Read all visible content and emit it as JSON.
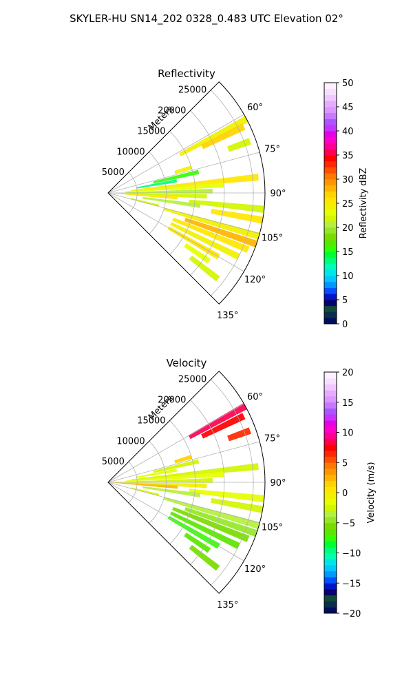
{
  "figure": {
    "suptitle": "SKYLER-HU  SN14_202  0328_0.483 UTC Elevation 02°"
  },
  "chart_data": [
    {
      "type": "heatmap",
      "projection": "polar-sector",
      "title": "Reflectivity",
      "range_label": "Meters",
      "azimuth_range_deg": [
        45,
        135
      ],
      "range_max_m": 27000,
      "range_ticks": [
        5000,
        10000,
        15000,
        20000,
        25000
      ],
      "range_tick_labels": [
        "5000",
        "10000",
        "15000",
        "20000",
        "25000"
      ],
      "azimuth_ticks": [
        60,
        75,
        90,
        105,
        120,
        135
      ],
      "azimuth_tick_labels": [
        "60°",
        "75°",
        "90°",
        "105°",
        "120°",
        "135°"
      ],
      "grid": true,
      "colorbar": {
        "label": "Reflectivity dBZ",
        "min": 0,
        "max": 50,
        "ticks": [
          0,
          5,
          10,
          15,
          20,
          25,
          30,
          35,
          40,
          45,
          50
        ],
        "tick_labels": [
          "0",
          "5",
          "10",
          "15",
          "20",
          "25",
          "30",
          "35",
          "40",
          "45",
          "50"
        ],
        "colors": [
          "#000e5a",
          "#0a2d4e",
          "#0f4a3a",
          "#08006e",
          "#0014c8",
          "#0050ff",
          "#0096ff",
          "#00c8ff",
          "#00e6e6",
          "#00ffb4",
          "#00ff78",
          "#00ff32",
          "#32ff00",
          "#5ae600",
          "#78dc00",
          "#96e628",
          "#b4f03c",
          "#d2f500",
          "#e6ff00",
          "#f0f000",
          "#ffe600",
          "#ffd200",
          "#ffb400",
          "#ff9600",
          "#ff7800",
          "#ff5000",
          "#ff2800",
          "#ff0000",
          "#ff0050",
          "#ff0096",
          "#ff00c8",
          "#e600e6",
          "#c832ff",
          "#aa55ff",
          "#c878ff",
          "#dc96ff",
          "#e6aaff",
          "#f0c8ff",
          "#f5e0ff",
          "#fff0ff"
        ]
      },
      "cells": [
        {
          "az": 62,
          "r0": 14000,
          "r1": 27000,
          "v": 24
        },
        {
          "az": 64,
          "r0": 18000,
          "r1": 26000,
          "v": 27
        },
        {
          "az": 70,
          "r0": 22000,
          "r1": 26000,
          "v": 22
        },
        {
          "az": 73,
          "r0": 12000,
          "r1": 15000,
          "v": 24
        },
        {
          "az": 77,
          "r0": 8000,
          "r1": 16000,
          "v": 15
        },
        {
          "az": 80,
          "r0": 5000,
          "r1": 12000,
          "v": 13
        },
        {
          "az": 84,
          "r0": 4000,
          "r1": 26000,
          "v": 25
        },
        {
          "az": 86,
          "r0": 3000,
          "r1": 20000,
          "v": 23
        },
        {
          "az": 89,
          "r0": 3000,
          "r1": 18000,
          "v": 21
        },
        {
          "az": 92,
          "r0": 1000,
          "r1": 17000,
          "v": 22
        },
        {
          "az": 94,
          "r0": 1000,
          "r1": 12000,
          "v": 26
        },
        {
          "az": 96,
          "r0": 14000,
          "r1": 27000,
          "v": 22
        },
        {
          "az": 98,
          "r0": 6000,
          "r1": 16000,
          "v": 20
        },
        {
          "az": 100,
          "r0": 18000,
          "r1": 27000,
          "v": 25
        },
        {
          "az": 104,
          "r0": 4000,
          "r1": 9000,
          "v": 22
        },
        {
          "az": 106,
          "r0": 10000,
          "r1": 27000,
          "v": 24
        },
        {
          "az": 109,
          "r0": 14000,
          "r1": 27000,
          "v": 28
        },
        {
          "az": 112,
          "r0": 12000,
          "r1": 26000,
          "v": 26
        },
        {
          "az": 116,
          "r0": 12000,
          "r1": 25000,
          "v": 24
        },
        {
          "az": 120,
          "r0": 12000,
          "r1": 22000,
          "v": 25
        },
        {
          "az": 124,
          "r0": 16000,
          "r1": 21000,
          "v": 23
        },
        {
          "az": 128,
          "r0": 18000,
          "r1": 24000,
          "v": 22
        }
      ]
    },
    {
      "type": "heatmap",
      "projection": "polar-sector",
      "title": "Velocity",
      "range_label": "Meters",
      "azimuth_range_deg": [
        45,
        135
      ],
      "range_max_m": 27000,
      "range_ticks": [
        5000,
        10000,
        15000,
        20000,
        25000
      ],
      "range_tick_labels": [
        "5000",
        "10000",
        "15000",
        "20000",
        "25000"
      ],
      "azimuth_ticks": [
        60,
        75,
        90,
        105,
        120,
        135
      ],
      "azimuth_tick_labels": [
        "60°",
        "75°",
        "90°",
        "105°",
        "120°",
        "135°"
      ],
      "grid": true,
      "colorbar": {
        "label": "Velocity (m/s)",
        "min": -20,
        "max": 20,
        "ticks": [
          -20,
          -15,
          -10,
          -5,
          0,
          5,
          10,
          15,
          20
        ],
        "tick_labels": [
          "−20",
          "−15",
          "−10",
          "−5",
          "0",
          "5",
          "10",
          "15",
          "20"
        ],
        "colors": [
          "#000e5a",
          "#0a2d4e",
          "#0f4a3a",
          "#08006e",
          "#0014c8",
          "#0050ff",
          "#0096ff",
          "#00c8ff",
          "#00e6e6",
          "#00ffb4",
          "#00ff78",
          "#00ff32",
          "#32ff00",
          "#5ae600",
          "#78dc00",
          "#96e628",
          "#b4f03c",
          "#d2f500",
          "#e6ff00",
          "#f0f000",
          "#ffe600",
          "#ffd200",
          "#ffb400",
          "#ff9600",
          "#ff7800",
          "#ff5000",
          "#ff2800",
          "#ff0000",
          "#ff0050",
          "#ff0096",
          "#ff00c8",
          "#e600e6",
          "#c832ff",
          "#aa55ff",
          "#c878ff",
          "#dc96ff",
          "#e6aaff",
          "#f0c8ff",
          "#f5e0ff",
          "#fff0ff"
        ]
      },
      "cells": [
        {
          "az": 61,
          "r0": 16000,
          "r1": 27000,
          "v": 8
        },
        {
          "az": 64,
          "r0": 18000,
          "r1": 26000,
          "v": 7
        },
        {
          "az": 70,
          "r0": 22000,
          "r1": 26000,
          "v": 6
        },
        {
          "az": 73,
          "r0": 12000,
          "r1": 15000,
          "v": 1
        },
        {
          "az": 77,
          "r0": 8000,
          "r1": 16000,
          "v": -3
        },
        {
          "az": 80,
          "r0": 5000,
          "r1": 12000,
          "v": -2
        },
        {
          "az": 84,
          "r0": 4000,
          "r1": 26000,
          "v": -3
        },
        {
          "az": 86,
          "r0": 3000,
          "r1": 20000,
          "v": -2
        },
        {
          "az": 89,
          "r0": 3000,
          "r1": 18000,
          "v": -3
        },
        {
          "az": 92,
          "r0": 0,
          "r1": 17000,
          "v": -1
        },
        {
          "az": 94,
          "r0": 0,
          "r1": 12000,
          "v": 2
        },
        {
          "az": 96,
          "r0": 14000,
          "r1": 27000,
          "v": -2
        },
        {
          "az": 98,
          "r0": 6000,
          "r1": 16000,
          "v": -4
        },
        {
          "az": 100,
          "r0": 18000,
          "r1": 27000,
          "v": -3
        },
        {
          "az": 104,
          "r0": 4000,
          "r1": 9000,
          "v": -3
        },
        {
          "az": 106,
          "r0": 10000,
          "r1": 27000,
          "v": -4
        },
        {
          "az": 109,
          "r0": 14000,
          "r1": 27000,
          "v": -5
        },
        {
          "az": 112,
          "r0": 12000,
          "r1": 26000,
          "v": -6
        },
        {
          "az": 116,
          "r0": 12000,
          "r1": 25000,
          "v": -7
        },
        {
          "az": 120,
          "r0": 12000,
          "r1": 22000,
          "v": -8
        },
        {
          "az": 124,
          "r0": 16000,
          "r1": 21000,
          "v": -7
        },
        {
          "az": 128,
          "r0": 18000,
          "r1": 24000,
          "v": -6
        }
      ]
    }
  ]
}
